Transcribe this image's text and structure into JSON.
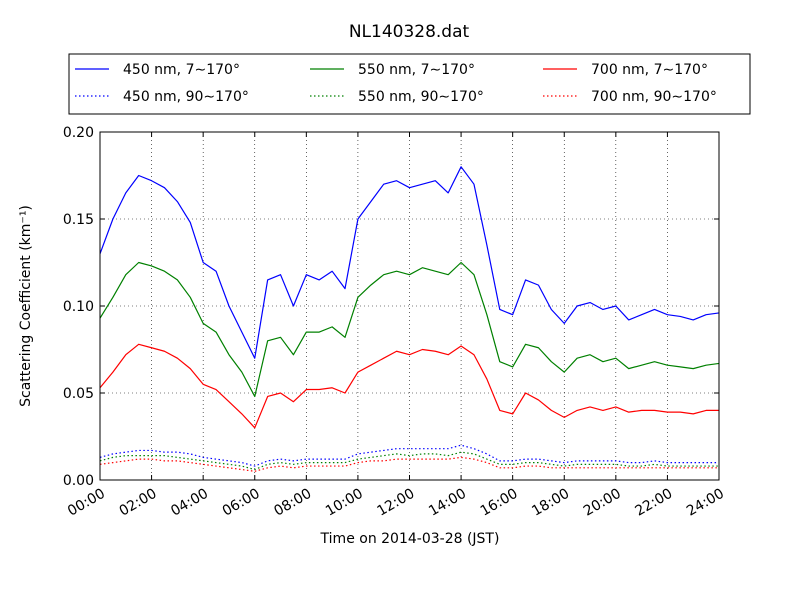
{
  "chart_data": {
    "type": "line",
    "title": "NL140328.dat",
    "xlabel": "Time on 2014-03-28 (JST)",
    "ylabel": "Scattering Coefficient (km⁻¹)",
    "x_unit": "hour",
    "xlim": [
      0,
      24
    ],
    "ylim": [
      0,
      0.2
    ],
    "grid": true,
    "legend_placement": "top, outside plot, 3 columns",
    "x_ticks": [
      0,
      2,
      4,
      6,
      8,
      10,
      12,
      14,
      16,
      18,
      20,
      22,
      24
    ],
    "x_tick_labels": [
      "00:00",
      "02:00",
      "04:00",
      "06:00",
      "08:00",
      "10:00",
      "12:00",
      "14:00",
      "16:00",
      "18:00",
      "20:00",
      "22:00",
      "24:00"
    ],
    "y_ticks": [
      0,
      0.05,
      0.1,
      0.15,
      0.2
    ],
    "y_tick_labels": [
      "0.00",
      "0.05",
      "0.10",
      "0.15",
      "0.20"
    ],
    "x": [
      0,
      0.5,
      1,
      1.5,
      2,
      2.5,
      3,
      3.5,
      4,
      4.5,
      5,
      5.5,
      6,
      6.5,
      7,
      7.5,
      8,
      8.5,
      9,
      9.5,
      10,
      10.5,
      11,
      11.5,
      12,
      12.5,
      13,
      13.5,
      14,
      14.5,
      15,
      15.5,
      16,
      16.5,
      17,
      17.5,
      18,
      18.5,
      19,
      19.5,
      20,
      20.5,
      21,
      21.5,
      22,
      22.5,
      23,
      23.5,
      24
    ],
    "series": [
      {
        "name": "450 nm, 7∼170°",
        "color": "#0000ff",
        "style": "solid",
        "values": [
          0.13,
          0.15,
          0.165,
          0.175,
          0.172,
          0.168,
          0.16,
          0.148,
          0.125,
          0.12,
          0.1,
          0.085,
          0.07,
          0.115,
          0.118,
          0.1,
          0.118,
          0.115,
          0.12,
          0.11,
          0.15,
          0.16,
          0.17,
          0.172,
          0.168,
          0.17,
          0.172,
          0.165,
          0.18,
          0.17,
          0.135,
          0.098,
          0.095,
          0.115,
          0.112,
          0.098,
          0.09,
          0.1,
          0.102,
          0.098,
          0.1,
          0.092,
          0.095,
          0.098,
          0.095,
          0.094,
          0.092,
          0.095,
          0.096
        ]
      },
      {
        "name": "550 nm, 7∼170°",
        "color": "#008000",
        "style": "solid",
        "values": [
          0.093,
          0.105,
          0.118,
          0.125,
          0.123,
          0.12,
          0.115,
          0.105,
          0.09,
          0.085,
          0.072,
          0.062,
          0.048,
          0.08,
          0.082,
          0.072,
          0.085,
          0.085,
          0.088,
          0.082,
          0.105,
          0.112,
          0.118,
          0.12,
          0.118,
          0.122,
          0.12,
          0.118,
          0.125,
          0.118,
          0.095,
          0.068,
          0.065,
          0.078,
          0.076,
          0.068,
          0.062,
          0.07,
          0.072,
          0.068,
          0.07,
          0.064,
          0.066,
          0.068,
          0.066,
          0.065,
          0.064,
          0.066,
          0.067
        ]
      },
      {
        "name": "700 nm, 7∼170°",
        "color": "#ff0000",
        "style": "solid",
        "values": [
          0.053,
          0.062,
          0.072,
          0.078,
          0.076,
          0.074,
          0.07,
          0.064,
          0.055,
          0.052,
          0.045,
          0.038,
          0.03,
          0.048,
          0.05,
          0.045,
          0.052,
          0.052,
          0.053,
          0.05,
          0.062,
          0.066,
          0.07,
          0.074,
          0.072,
          0.075,
          0.074,
          0.072,
          0.077,
          0.072,
          0.058,
          0.04,
          0.038,
          0.05,
          0.046,
          0.04,
          0.036,
          0.04,
          0.042,
          0.04,
          0.042,
          0.039,
          0.04,
          0.04,
          0.039,
          0.039,
          0.038,
          0.04,
          0.04
        ]
      },
      {
        "name": "450 nm, 90∼170°",
        "color": "#0000ff",
        "style": "dotted",
        "values": [
          0.013,
          0.015,
          0.016,
          0.017,
          0.017,
          0.016,
          0.016,
          0.015,
          0.013,
          0.012,
          0.011,
          0.01,
          0.008,
          0.011,
          0.012,
          0.011,
          0.012,
          0.012,
          0.012,
          0.012,
          0.015,
          0.016,
          0.017,
          0.018,
          0.018,
          0.018,
          0.018,
          0.018,
          0.02,
          0.018,
          0.015,
          0.011,
          0.011,
          0.012,
          0.012,
          0.011,
          0.01,
          0.011,
          0.011,
          0.011,
          0.011,
          0.01,
          0.01,
          0.011,
          0.01,
          0.01,
          0.01,
          0.01,
          0.01
        ]
      },
      {
        "name": "550 nm, 90∼170°",
        "color": "#008000",
        "style": "dotted",
        "values": [
          0.011,
          0.013,
          0.014,
          0.014,
          0.014,
          0.014,
          0.013,
          0.012,
          0.011,
          0.01,
          0.009,
          0.008,
          0.006,
          0.009,
          0.01,
          0.009,
          0.01,
          0.01,
          0.01,
          0.01,
          0.012,
          0.013,
          0.014,
          0.015,
          0.014,
          0.015,
          0.015,
          0.014,
          0.016,
          0.015,
          0.012,
          0.009,
          0.009,
          0.01,
          0.01,
          0.009,
          0.008,
          0.009,
          0.009,
          0.009,
          0.009,
          0.008,
          0.008,
          0.009,
          0.008,
          0.008,
          0.008,
          0.008,
          0.008
        ]
      },
      {
        "name": "700 nm, 90∼170°",
        "color": "#ff0000",
        "style": "dotted",
        "values": [
          0.009,
          0.01,
          0.011,
          0.012,
          0.012,
          0.011,
          0.011,
          0.01,
          0.009,
          0.008,
          0.007,
          0.006,
          0.005,
          0.007,
          0.008,
          0.007,
          0.008,
          0.008,
          0.008,
          0.008,
          0.01,
          0.011,
          0.011,
          0.012,
          0.012,
          0.012,
          0.012,
          0.012,
          0.013,
          0.012,
          0.01,
          0.007,
          0.007,
          0.008,
          0.008,
          0.007,
          0.007,
          0.007,
          0.007,
          0.007,
          0.007,
          0.007,
          0.007,
          0.007,
          0.007,
          0.007,
          0.007,
          0.007,
          0.007
        ]
      }
    ]
  }
}
